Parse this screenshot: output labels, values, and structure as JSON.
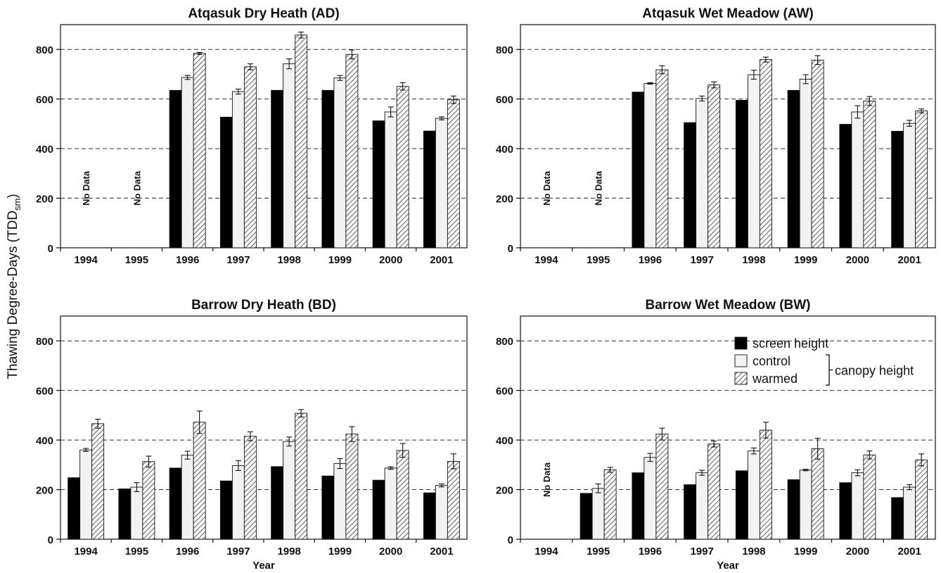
{
  "figure": {
    "ylabel_main": "Thawing Degree-Days (TDD",
    "ylabel_sub": "sm",
    "ylabel_close": ")"
  },
  "legend": {
    "screen": "screen height",
    "control": "control",
    "warmed": "warmed",
    "canopy": "canopy height"
  },
  "chart_data": [
    {
      "type": "bar",
      "title": "Atqasuk Dry Heath (AD)",
      "xlabel": "",
      "ylabel": "Thawing Degree-Days (TDDsm)",
      "ylim": [
        0,
        900
      ],
      "yticks": [
        0,
        200,
        400,
        600,
        800
      ],
      "grid": true,
      "categories": [
        "1994",
        "1995",
        "1996",
        "1997",
        "1998",
        "1999",
        "2000",
        "2001"
      ],
      "series": [
        {
          "name": "screen height",
          "values": [
            null,
            null,
            635,
            527,
            635,
            635,
            512,
            471
          ]
        },
        {
          "name": "control",
          "values": [
            null,
            null,
            687,
            630,
            742,
            685,
            548,
            522
          ]
        },
        {
          "name": "warmed",
          "values": [
            null,
            null,
            784,
            730,
            858,
            780,
            651,
            597
          ]
        }
      ],
      "errors": {
        "control": [
          null,
          null,
          8,
          10,
          20,
          10,
          20,
          6
        ],
        "warmed": [
          null,
          null,
          4,
          12,
          12,
          18,
          15,
          15
        ]
      },
      "annotations": [
        {
          "category": "1994",
          "text": "No Data"
        },
        {
          "category": "1995",
          "text": "No Data"
        }
      ],
      "legend": false
    },
    {
      "type": "bar",
      "title": "Atqasuk Wet Meadow (AW)",
      "xlabel": "",
      "ylim": [
        0,
        900
      ],
      "yticks": [
        0,
        200,
        400,
        600,
        800
      ],
      "grid": true,
      "categories": [
        "1994",
        "1995",
        "1996",
        "1997",
        "1998",
        "1999",
        "2000",
        "2001"
      ],
      "series": [
        {
          "name": "screen height",
          "values": [
            null,
            null,
            628,
            505,
            595,
            635,
            498,
            470
          ]
        },
        {
          "name": "control",
          "values": [
            null,
            null,
            663,
            602,
            698,
            680,
            548,
            502
          ]
        },
        {
          "name": "warmed",
          "values": [
            null,
            null,
            718,
            657,
            759,
            757,
            592,
            552
          ]
        }
      ],
      "errors": {
        "control": [
          null,
          null,
          3,
          10,
          18,
          18,
          25,
          12
        ],
        "warmed": [
          null,
          null,
          16,
          12,
          10,
          18,
          18,
          8
        ]
      },
      "annotations": [
        {
          "category": "1994",
          "text": "No Data"
        },
        {
          "category": "1995",
          "text": "No Data"
        }
      ],
      "legend": false
    },
    {
      "type": "bar",
      "title": "Barrow Dry Heath (BD)",
      "xlabel": "Year",
      "ylim": [
        0,
        900
      ],
      "yticks": [
        0,
        200,
        400,
        600,
        800
      ],
      "grid": true,
      "categories": [
        "1994",
        "1995",
        "1996",
        "1997",
        "1998",
        "1999",
        "2000",
        "2001"
      ],
      "series": [
        {
          "name": "screen height",
          "values": [
            248,
            203,
            287,
            235,
            293,
            255,
            238,
            187
          ]
        },
        {
          "name": "control",
          "values": [
            360,
            210,
            339,
            297,
            394,
            305,
            287,
            217
          ]
        },
        {
          "name": "warmed",
          "values": [
            466,
            313,
            472,
            415,
            508,
            424,
            358,
            314
          ]
        }
      ],
      "errors": {
        "control": [
          6,
          18,
          16,
          20,
          18,
          20,
          5,
          6
        ],
        "warmed": [
          18,
          22,
          45,
          18,
          15,
          30,
          28,
          30
        ]
      },
      "annotations": [],
      "legend": false
    },
    {
      "type": "bar",
      "title": "Barrow Wet Meadow (BW)",
      "xlabel": "Year",
      "ylim": [
        0,
        900
      ],
      "yticks": [
        0,
        200,
        400,
        600,
        800
      ],
      "grid": true,
      "categories": [
        "1994",
        "1995",
        "1996",
        "1997",
        "1998",
        "1999",
        "2000",
        "2001"
      ],
      "series": [
        {
          "name": "screen height",
          "values": [
            null,
            185,
            268,
            220,
            276,
            240,
            228,
            168
          ]
        },
        {
          "name": "control",
          "values": [
            null,
            205,
            330,
            268,
            356,
            279,
            268,
            210
          ]
        },
        {
          "name": "warmed",
          "values": [
            null,
            280,
            424,
            384,
            440,
            365,
            340,
            320
          ]
        }
      ],
      "errors": {
        "control": [
          null,
          18,
          16,
          10,
          12,
          3,
          12,
          10
        ],
        "warmed": [
          null,
          10,
          24,
          12,
          32,
          42,
          16,
          24
        ]
      },
      "annotations": [
        {
          "category": "1994",
          "text": "No Data"
        }
      ],
      "legend": "right"
    }
  ]
}
